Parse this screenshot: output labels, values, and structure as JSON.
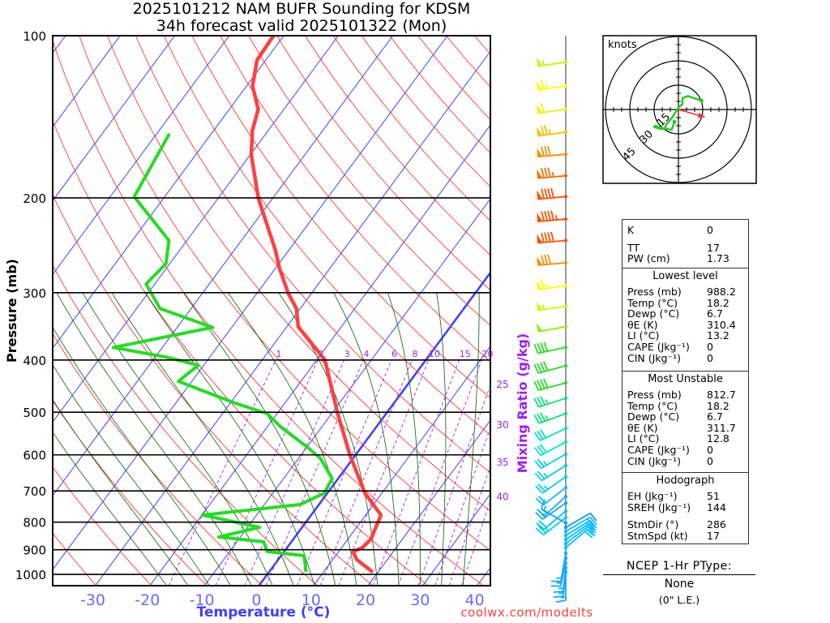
{
  "chart_data": {
    "type": "skewt",
    "title": "2025101212 NAM BUFR Sounding for KDSM",
    "subtitle": "34h forecast valid 2025101322 (Mon)",
    "xlabel": "Temperature (°C)",
    "ylabel": "Pressure (mb)",
    "y2label": "Mixing Ratio (g/kg)",
    "pressure_ticks": [
      100,
      200,
      300,
      400,
      500,
      600,
      700,
      800,
      900,
      1000
    ],
    "temp_ticks": [
      -30,
      -20,
      -10,
      0,
      10,
      20,
      30,
      40
    ],
    "pressure_range": [
      100,
      1050
    ],
    "mixing_ratio_labels": [
      1,
      2,
      3,
      4,
      6,
      8,
      10,
      15,
      20
    ],
    "mixing_ratio_right_labels": [
      25,
      30,
      35,
      40
    ],
    "temperature": [
      [
        990,
        19.0
      ],
      [
        939,
        14.4
      ],
      [
        907,
        12.6
      ],
      [
        892,
        13.8
      ],
      [
        860,
        14.2
      ],
      [
        818,
        13.5
      ],
      [
        776,
        12.8
      ],
      [
        707,
        6.9
      ],
      [
        601,
        -1.0
      ],
      [
        503,
        -8.9
      ],
      [
        400,
        -18.5
      ],
      [
        347,
        -27.9
      ],
      [
        321,
        -30.7
      ],
      [
        300,
        -34.4
      ],
      [
        270,
        -39.3
      ],
      [
        250,
        -42.5
      ],
      [
        200,
        -52.7
      ],
      [
        166,
        -59.9
      ],
      [
        150,
        -62.9
      ],
      [
        137,
        -64.7
      ],
      [
        124,
        -68.9
      ],
      [
        111,
        -71.6
      ],
      [
        100,
        -71.9
      ]
    ],
    "dewpoint": [
      [
        990,
        6.8
      ],
      [
        923,
        4.2
      ],
      [
        907,
        -3.1
      ],
      [
        870,
        -5.1
      ],
      [
        852,
        -14.0
      ],
      [
        818,
        -7.8
      ],
      [
        776,
        -19.9
      ],
      [
        742,
        -3.5
      ],
      [
        707,
        -0.6
      ],
      [
        664,
        -1.1
      ],
      [
        609,
        -6.0
      ],
      [
        582,
        -9.7
      ],
      [
        530,
        -17.9
      ],
      [
        503,
        -21.8
      ],
      [
        481,
        -29.1
      ],
      [
        438,
        -42.5
      ],
      [
        409,
        -41.0
      ],
      [
        395,
        -48.0
      ],
      [
        379,
        -59.0
      ],
      [
        348,
        -43.5
      ],
      [
        321,
        -55.7
      ],
      [
        289,
        -61.6
      ],
      [
        265,
        -60.7
      ],
      [
        240,
        -63.3
      ],
      [
        199,
        -75.6
      ],
      [
        152,
        -77.7
      ]
    ],
    "winds": [
      [
        112,
        262,
        55
      ],
      [
        124,
        262,
        65
      ],
      [
        137,
        262,
        60
      ],
      [
        151,
        262,
        75
      ],
      [
        166,
        265,
        80
      ],
      [
        182,
        265,
        85
      ],
      [
        199,
        265,
        90
      ],
      [
        219,
        265,
        95
      ],
      [
        240,
        265,
        90
      ],
      [
        264,
        265,
        80
      ],
      [
        291,
        262,
        65
      ],
      [
        318,
        262,
        55
      ],
      [
        347,
        260,
        50
      ],
      [
        379,
        258,
        40
      ],
      [
        410,
        255,
        40
      ],
      [
        441,
        255,
        40
      ],
      [
        471,
        252,
        35
      ],
      [
        503,
        250,
        35
      ],
      [
        536,
        245,
        30
      ],
      [
        568,
        242,
        30
      ],
      [
        598,
        240,
        25
      ],
      [
        628,
        238,
        25
      ],
      [
        659,
        235,
        25
      ],
      [
        690,
        232,
        20
      ],
      [
        717,
        228,
        15
      ],
      [
        737,
        235,
        15
      ],
      [
        763,
        230,
        20
      ],
      [
        784,
        232,
        25
      ],
      [
        803,
        300,
        15
      ],
      [
        818,
        60,
        10
      ],
      [
        832,
        60,
        20
      ],
      [
        847,
        58,
        20
      ],
      [
        862,
        55,
        20
      ],
      [
        877,
        52,
        20
      ],
      [
        892,
        50,
        20
      ],
      [
        914,
        190,
        15
      ],
      [
        933,
        190,
        15
      ],
      [
        953,
        185,
        15
      ],
      [
        973,
        185,
        15
      ],
      [
        990,
        180,
        15
      ]
    ],
    "hodograph": {
      "units": "knots",
      "rings": [
        15,
        30,
        45
      ],
      "trace": [
        [
          14.2,
          5.5
        ],
        [
          5.8,
          8.3
        ],
        [
          2.5,
          7.0
        ],
        [
          2.5,
          3.3
        ],
        [
          0.5,
          1.7
        ],
        [
          -0.8,
          0
        ],
        [
          -3.3,
          -4.2
        ],
        [
          -7.5,
          -9.2
        ],
        [
          -8.3,
          -11.7
        ],
        [
          -10.8,
          -12.0
        ],
        [
          -15.0,
          -10.8
        ],
        [
          -14.2,
          -10.0
        ],
        [
          -9.2,
          -11.7
        ],
        [
          -4.2,
          -12.5
        ],
        [
          -3.3,
          -10.0
        ],
        [
          -2.5,
          -7.5
        ]
      ],
      "storm_dir": 286,
      "storm_spd": 17
    }
  },
  "colors": {
    "temperature": "#FF4040",
    "dewpoint": "#22DD22",
    "isotherm": "#3F3FFF",
    "dry_adiabat": "#FF2020",
    "moist_adiabat": "#006400",
    "mixing_ratio": "#A020F0",
    "storm_motion": "#FF3030"
  },
  "stats": {
    "indices": [
      {
        "label": "K",
        "value": "0"
      },
      {
        "label": "TT",
        "value": "17"
      },
      {
        "label": "PW (cm)",
        "value": "1.73"
      }
    ],
    "lowest": {
      "title": "Lowest level",
      "rows": [
        {
          "label": "Press (mb)",
          "value": "988.2"
        },
        {
          "label": "Temp (°C)",
          "value": "18.2"
        },
        {
          "label": "Dewp (°C)",
          "value": "6.7"
        },
        {
          "label": "θE (K)",
          "value": "310.4"
        },
        {
          "label": "LI (°C)",
          "value": "13.2"
        },
        {
          "label": "CAPE (Jkg⁻¹)",
          "value": "0"
        },
        {
          "label": "CIN (Jkg⁻¹)",
          "value": "0"
        }
      ]
    },
    "unstable": {
      "title": "Most Unstable",
      "rows": [
        {
          "label": "Press (mb)",
          "value": "812.7"
        },
        {
          "label": "Temp (°C)",
          "value": "18.2"
        },
        {
          "label": "Dewp (°C)",
          "value": "6.7"
        },
        {
          "label": "θE (K)",
          "value": "311.7"
        },
        {
          "label": "LI (°C)",
          "value": "12.8"
        },
        {
          "label": "CAPE (Jkg⁻¹)",
          "value": "0"
        },
        {
          "label": "CIN (Jkg⁻¹)",
          "value": "0"
        }
      ]
    },
    "hodo": {
      "title": "Hodograph",
      "rows": [
        {
          "label": "EH (Jkg⁻¹)",
          "value": "51"
        },
        {
          "label": "SREH (Jkg⁻¹)",
          "value": "144"
        },
        {
          "label": "StmDir (°)",
          "value": "286"
        },
        {
          "label": "StmSpd (kt)",
          "value": "17"
        }
      ]
    }
  },
  "ptype": {
    "header": "NCEP 1-Hr PType:",
    "value": "None",
    "liquid": "(0\" L.E.)"
  },
  "credit": "coolwx.com/modelts"
}
